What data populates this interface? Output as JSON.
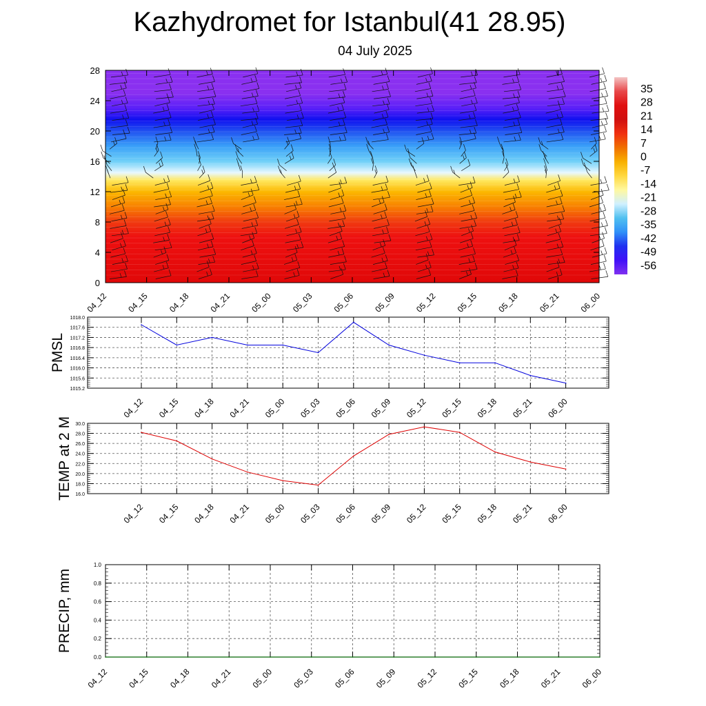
{
  "header": {
    "title": "Kazhydromet for Istanbul(41 28.95)",
    "subtitle": "04 July 2025"
  },
  "colors": {
    "pmsl_line": "#0000dd",
    "temp_line": "#dd0000",
    "precip_line": "#006400",
    "grid": "#555555"
  },
  "chart_data": [
    {
      "type": "heatmap",
      "name": "cross-section",
      "x_ticks": [
        "04_12",
        "04_15",
        "04_18",
        "04_21",
        "05_00",
        "05_03",
        "05_06",
        "05_09",
        "05_12",
        "05_15",
        "05_18",
        "05_21",
        "06_00"
      ],
      "y_ticks": [
        0,
        4,
        8,
        12,
        16,
        20,
        24,
        28
      ],
      "ylim": [
        0,
        28
      ],
      "colorbar_labels": [
        "35",
        "28",
        "21",
        "14",
        "7",
        "0",
        "-7",
        "-14",
        "-21",
        "-28",
        "-35",
        "-42",
        "-49",
        "-56"
      ],
      "colorbar_colors": [
        "#f4c4c4",
        "#e8484a",
        "#e01010",
        "#d01010",
        "#f03010",
        "#f07000",
        "#f8b000",
        "#ffd840",
        "#fff8a0",
        "#d0f0ff",
        "#50c0f0",
        "#3090f8",
        "#2030f0",
        "#4010f8",
        "#8030f0"
      ],
      "vertical_profile": [
        {
          "h": 0,
          "color": "#e00808"
        },
        {
          "h": 6,
          "color": "#ee1010"
        },
        {
          "h": 8,
          "color": "#f03a10"
        },
        {
          "h": 10,
          "color": "#f88000"
        },
        {
          "h": 12,
          "color": "#fcb800"
        },
        {
          "h": 13.5,
          "color": "#ffe860"
        },
        {
          "h": 14.5,
          "color": "#e8f8ff"
        },
        {
          "h": 16,
          "color": "#70d0f8"
        },
        {
          "h": 18,
          "color": "#3aa0f8"
        },
        {
          "h": 20,
          "color": "#2050f0"
        },
        {
          "h": 21.5,
          "color": "#1010f0"
        },
        {
          "h": 23,
          "color": "#5a20f8"
        },
        {
          "h": 25,
          "color": "#8a30f0"
        },
        {
          "h": 28,
          "color": "#8a30f0"
        }
      ],
      "wind_barbs": "present"
    },
    {
      "type": "line",
      "name": "PMSL",
      "ylabel": "PMSL",
      "categories": [
        "04_12",
        "04_15",
        "04_18",
        "04_21",
        "05_00",
        "05_03",
        "05_06",
        "05_09",
        "05_12",
        "05_15",
        "05_18",
        "05_21",
        "06_00"
      ],
      "values": [
        1017.7,
        1016.9,
        1017.2,
        1016.9,
        1016.9,
        1016.6,
        1017.8,
        1016.9,
        1016.5,
        1016.2,
        1016.2,
        1015.7,
        1015.4
      ],
      "ylim": [
        1015.2,
        1018.0
      ],
      "y_ticks": [
        "1015.2",
        "1015.6",
        "1016.0",
        "1016.4",
        "1016.8",
        "1017.2",
        "1017.6",
        "1018.0"
      ],
      "grid": true
    },
    {
      "type": "line",
      "name": "TEMP",
      "ylabel": "TEMP at 2 M",
      "categories": [
        "04_12",
        "04_15",
        "04_18",
        "04_21",
        "05_00",
        "05_03",
        "05_06",
        "05_09",
        "05_12",
        "05_15",
        "05_18",
        "05_21",
        "06_00"
      ],
      "values": [
        28.2,
        26.5,
        22.9,
        20.3,
        18.6,
        17.7,
        23.5,
        27.8,
        29.3,
        28.2,
        24.3,
        22.3,
        20.9
      ],
      "ylim": [
        16.0,
        30.0
      ],
      "y_ticks": [
        "16.0",
        "18.0",
        "20.0",
        "22.0",
        "24.0",
        "26.0",
        "28.0",
        "30.0"
      ],
      "grid": true
    },
    {
      "type": "line",
      "name": "PRECIP",
      "ylabel": "PRECIP, mm",
      "categories": [
        "04_12",
        "04_15",
        "04_18",
        "04_21",
        "05_00",
        "05_03",
        "05_06",
        "05_09",
        "05_12",
        "05_15",
        "05_18",
        "05_21",
        "06_00"
      ],
      "values": [
        0,
        0,
        0,
        0,
        0,
        0,
        0,
        0,
        0,
        0,
        0,
        0,
        0
      ],
      "ylim": [
        0.0,
        1.0
      ],
      "y_ticks": [
        "0.0",
        "0.2",
        "0.4",
        "0.6",
        "0.8",
        "1.0"
      ],
      "grid": true
    }
  ]
}
